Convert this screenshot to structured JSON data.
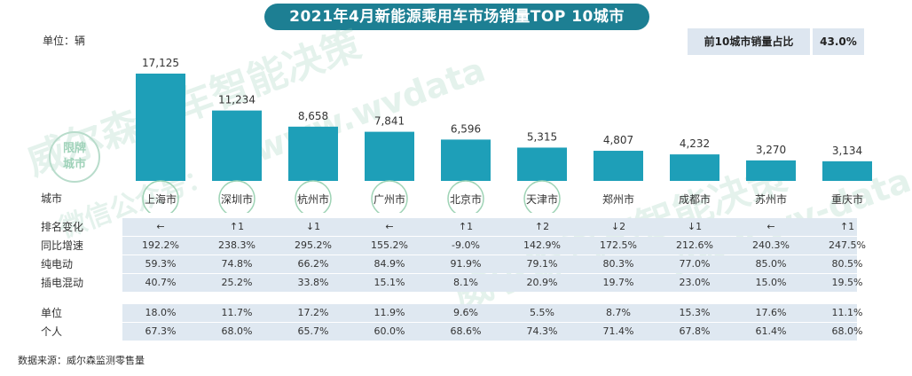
{
  "header": {
    "title": "2021年4月新能源乘用车市场销量TOP 10城市",
    "unit_label": "单位：辆",
    "share_label": "前10城市销量占比",
    "share_value": "43.0%"
  },
  "watermark": {
    "badge_line1": "限牌",
    "badge_line2": "城市",
    "text1": "威尔森汽车智能决策",
    "text2": "www.wvdata",
    "text3": "微信公众号：",
    "text4": "威尔森汽车智能决策",
    "text5": "www.wv-data"
  },
  "colors": {
    "bar": "#1e9fb8",
    "title_bg": "#1d7f93",
    "band": "#dfe8f1"
  },
  "chart_data": {
    "type": "bar",
    "categories": [
      "上海市",
      "深圳市",
      "杭州市",
      "广州市",
      "北京市",
      "天津市",
      "郑州市",
      "成都市",
      "苏州市",
      "重庆市"
    ],
    "values": [
      17125,
      11234,
      8658,
      7841,
      6596,
      5315,
      4807,
      4232,
      3270,
      3134
    ],
    "value_labels": [
      "17,125",
      "11,234",
      "8,658",
      "7,841",
      "6,596",
      "5,315",
      "4,807",
      "4,232",
      "3,270",
      "3,134"
    ],
    "limited_plate_cities": [
      "上海市",
      "深圳市",
      "杭州市",
      "广州市",
      "北京市",
      "天津市"
    ],
    "title": "2021年4月新能源乘用车市场销量TOP 10城市",
    "ylabel": "单位：辆",
    "ylim": [
      0,
      17125
    ],
    "grid": false
  },
  "table": {
    "city_header": "城市",
    "rows": [
      {
        "label": "排名变化",
        "values": [
          "←",
          "↑1",
          "↓1",
          "←",
          "↑1",
          "↑2",
          "↓2",
          "↓1",
          "←",
          "↑1"
        ]
      },
      {
        "label": "同比增速",
        "values": [
          "192.2%",
          "238.3%",
          "295.2%",
          "155.2%",
          "-9.0%",
          "142.9%",
          "172.5%",
          "212.6%",
          "240.3%",
          "247.5%"
        ]
      },
      {
        "label": "纯电动",
        "values": [
          "59.3%",
          "74.8%",
          "66.2%",
          "84.9%",
          "91.9%",
          "79.1%",
          "80.3%",
          "77.0%",
          "85.0%",
          "80.5%"
        ]
      },
      {
        "label": "插电混动",
        "values": [
          "40.7%",
          "25.2%",
          "33.8%",
          "15.1%",
          "8.1%",
          "20.9%",
          "19.7%",
          "23.0%",
          "15.0%",
          "19.5%"
        ]
      },
      {
        "label": "单位",
        "values": [
          "18.0%",
          "11.7%",
          "17.2%",
          "11.9%",
          "9.6%",
          "5.5%",
          "8.7%",
          "15.3%",
          "17.6%",
          "11.1%"
        ]
      },
      {
        "label": "个人",
        "values": [
          "67.3%",
          "68.0%",
          "65.7%",
          "60.0%",
          "68.6%",
          "74.3%",
          "71.4%",
          "67.8%",
          "61.4%",
          "68.0%"
        ]
      }
    ]
  },
  "footer": {
    "source": "数据来源：威尔森监测零售量"
  }
}
